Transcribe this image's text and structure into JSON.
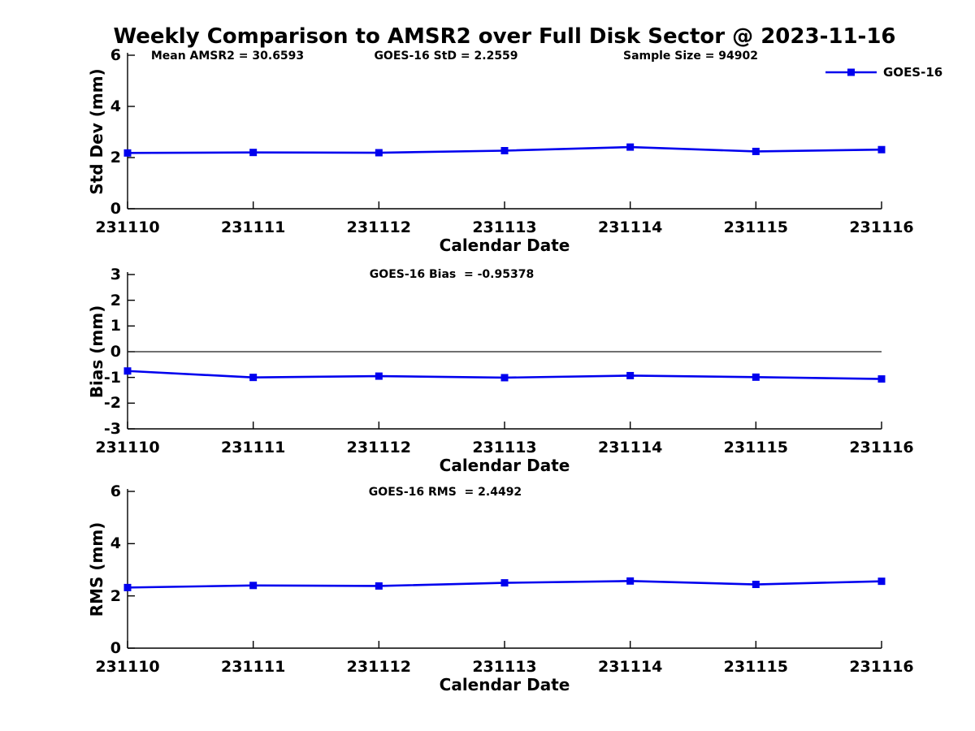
{
  "title": "Weekly Comparison to AMSR2 over Full Disk Sector @ 2023-11-16",
  "colors": {
    "series": "#0000ee",
    "axis": "#000000",
    "zero_line": "#1a1a1a"
  },
  "legend": {
    "label": "GOES-16",
    "position": "top-right-of-first-plot"
  },
  "chart_data": [
    {
      "type": "line",
      "categories": [
        "231110",
        "231111",
        "231112",
        "231113",
        "231114",
        "231115",
        "231116"
      ],
      "series": [
        {
          "name": "GOES-16",
          "values": [
            2.18,
            2.2,
            2.19,
            2.27,
            2.41,
            2.24,
            2.31
          ]
        }
      ],
      "annotations": [
        "Mean AMSR2 = 30.6593",
        "GOES-16 StD = 2.2559",
        "Sample Size = 94902"
      ],
      "xlabel": "Calendar Date",
      "ylabel": "Std Dev (mm)",
      "ylim": [
        0,
        6
      ],
      "yticks": [
        0,
        2,
        4,
        6
      ],
      "zero_line": false,
      "grid": false,
      "marker": "square"
    },
    {
      "type": "line",
      "categories": [
        "231110",
        "231111",
        "231112",
        "231113",
        "231114",
        "231115",
        "231116"
      ],
      "series": [
        {
          "name": "GOES-16",
          "values": [
            -0.75,
            -1.0,
            -0.95,
            -1.01,
            -0.93,
            -0.99,
            -1.06
          ]
        }
      ],
      "annotations": [
        "GOES-16 Bias  = -0.95378"
      ],
      "xlabel": "Calendar Date",
      "ylabel": "Bias (mm)",
      "ylim": [
        -3,
        3
      ],
      "yticks": [
        -3,
        -2,
        -1,
        0,
        1,
        2,
        3
      ],
      "zero_line": true,
      "grid": false,
      "marker": "square"
    },
    {
      "type": "line",
      "categories": [
        "231110",
        "231111",
        "231112",
        "231113",
        "231114",
        "231115",
        "231116"
      ],
      "series": [
        {
          "name": "GOES-16",
          "values": [
            2.32,
            2.4,
            2.38,
            2.5,
            2.57,
            2.44,
            2.56
          ]
        }
      ],
      "annotations": [
        "GOES-16 RMS  = 2.4492"
      ],
      "xlabel": "Calendar Date",
      "ylabel": "RMS (mm)",
      "ylim": [
        0,
        6
      ],
      "yticks": [
        0,
        2,
        4,
        6
      ],
      "zero_line": false,
      "grid": false,
      "marker": "square"
    }
  ]
}
